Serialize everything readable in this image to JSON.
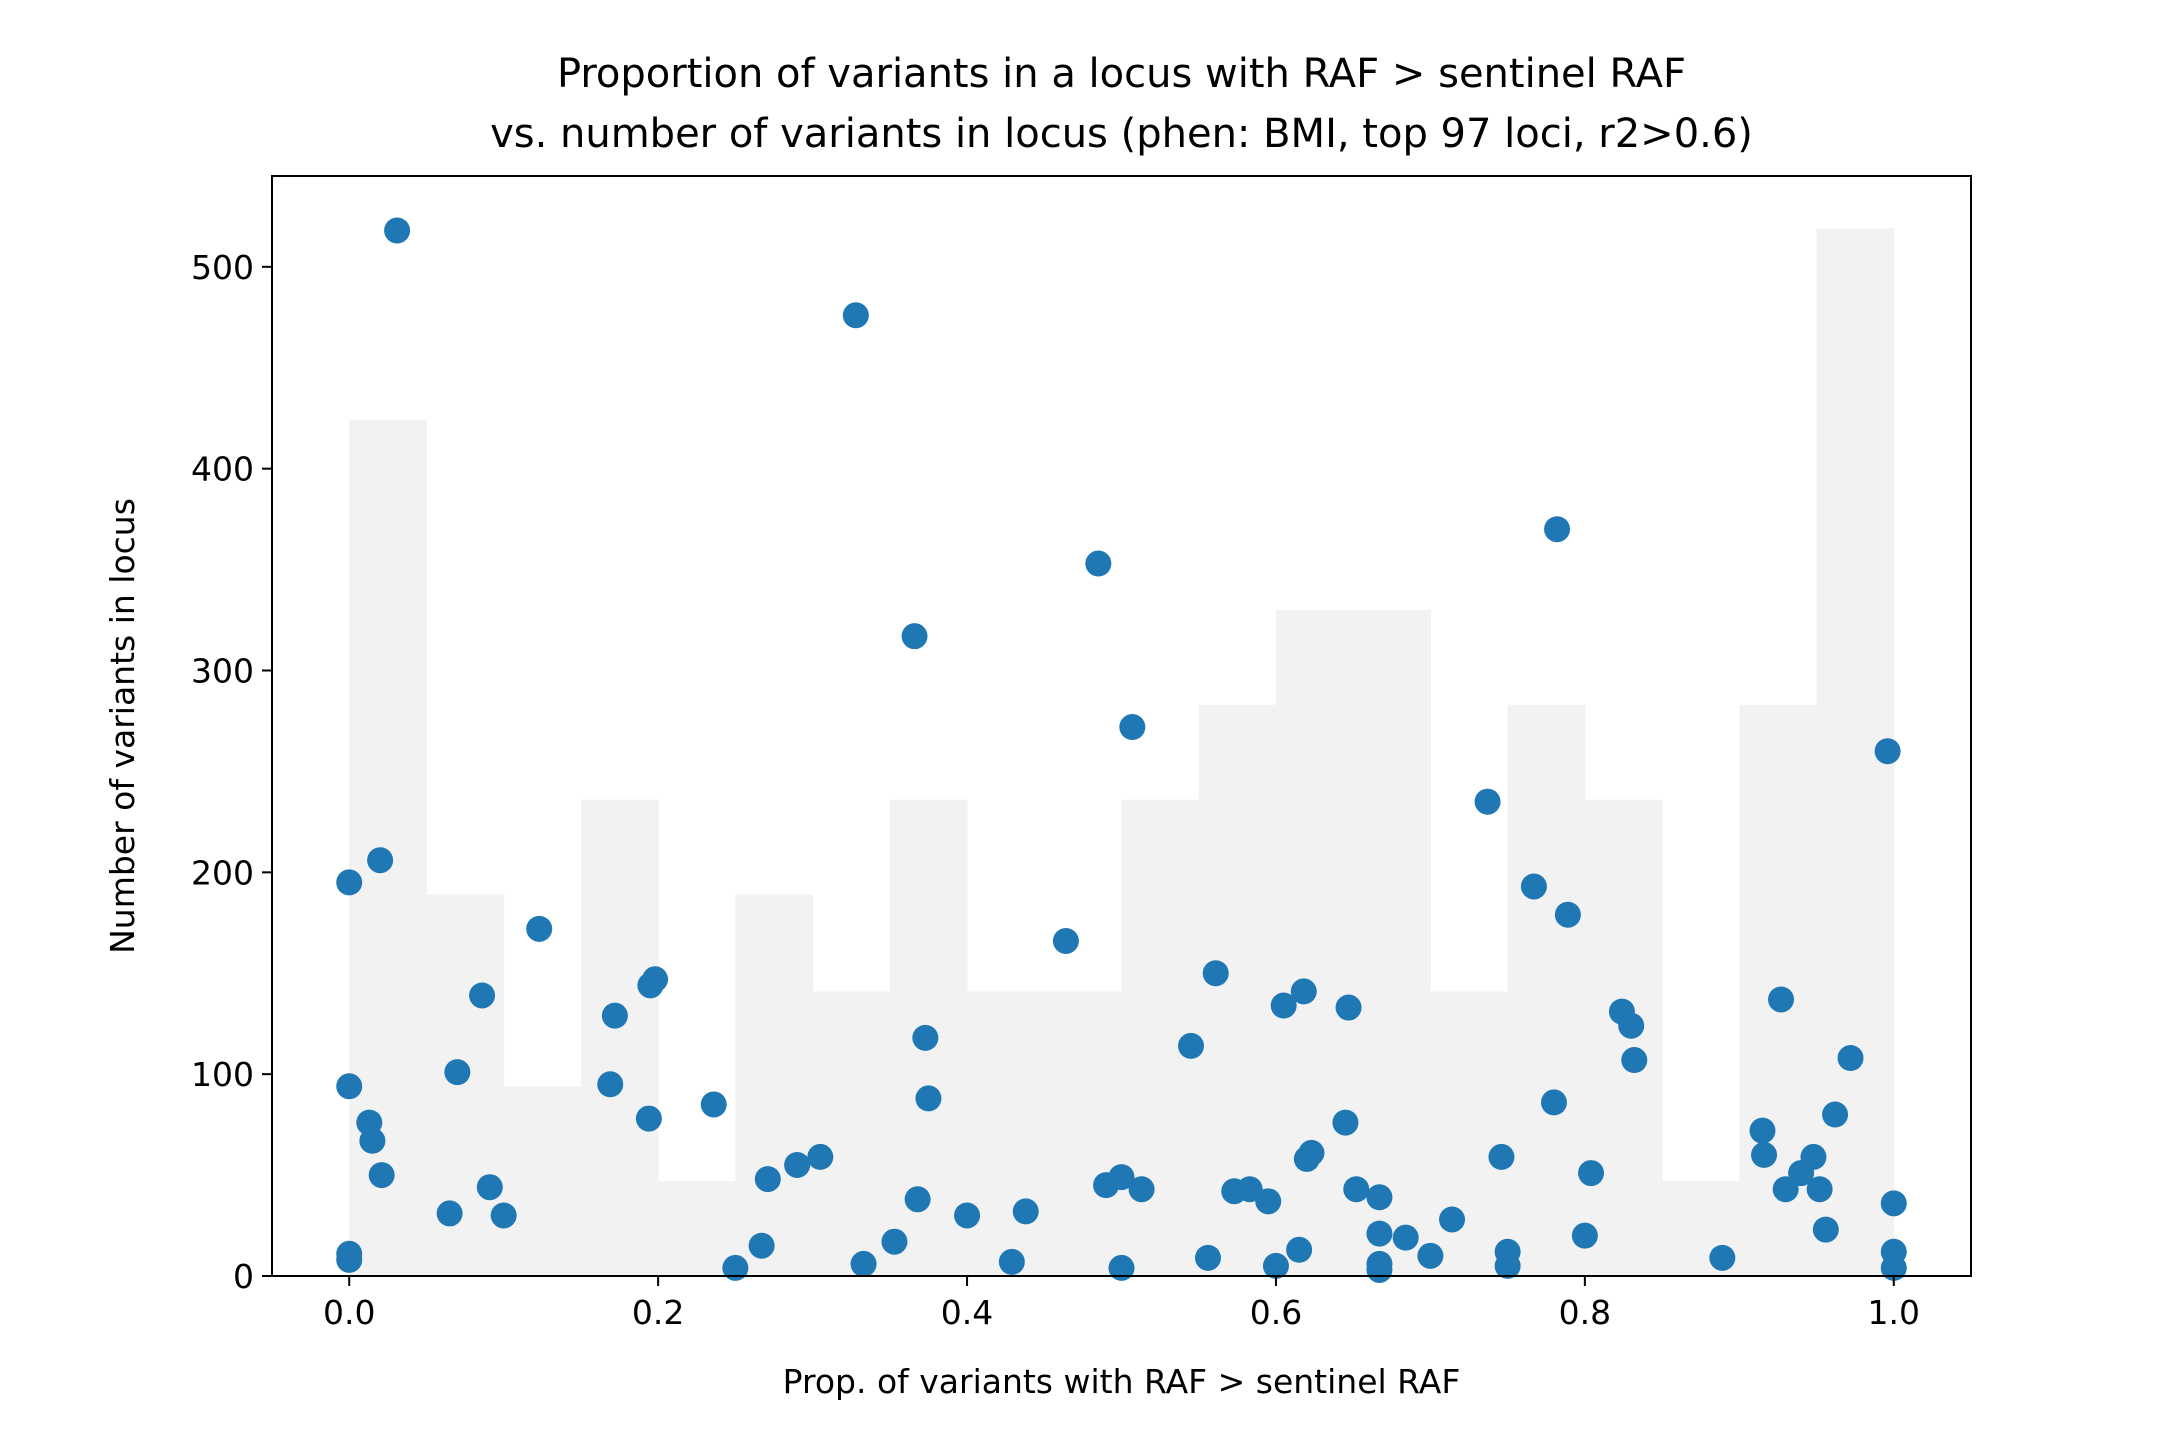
{
  "chart_data": {
    "type": "scatter",
    "title_lines": [
      "Proportion of variants in a locus with RAF > sentinel RAF",
      "vs. number of variants in locus (phen: BMI, top 97 loci, r2>0.6)"
    ],
    "xlabel": "Prop. of variants with RAF > sentinel RAF",
    "ylabel": "Number of variants in locus",
    "xlim": [
      -0.05,
      1.05
    ],
    "ylim": [
      0,
      545
    ],
    "x_ticks": [
      {
        "value": 0.0,
        "label": "0.0"
      },
      {
        "value": 0.2,
        "label": "0.2"
      },
      {
        "value": 0.4,
        "label": "0.4"
      },
      {
        "value": 0.6,
        "label": "0.6"
      },
      {
        "value": 0.8,
        "label": "0.8"
      },
      {
        "value": 1.0,
        "label": "1.0"
      }
    ],
    "y_ticks": [
      {
        "value": 0,
        "label": "0"
      },
      {
        "value": 100,
        "label": "100"
      },
      {
        "value": 200,
        "label": "200"
      },
      {
        "value": 300,
        "label": "300"
      },
      {
        "value": 400,
        "label": "400"
      },
      {
        "value": 500,
        "label": "500"
      }
    ],
    "grid": false,
    "colors": {
      "points": "#1f77b4",
      "histogram": "#f2f2f2",
      "axes": "#000000"
    },
    "background_histogram": {
      "bin_width": 0.05,
      "bin_starts": [
        0.0,
        0.05,
        0.1,
        0.15,
        0.2,
        0.25,
        0.3,
        0.35,
        0.4,
        0.45,
        0.5,
        0.55,
        0.6,
        0.65,
        0.7,
        0.75,
        0.8,
        0.85,
        0.9,
        0.95
      ],
      "heights": [
        424,
        189,
        94,
        236,
        47,
        189,
        141,
        236,
        141,
        141,
        236,
        283,
        330,
        330,
        141,
        283,
        236,
        47,
        283,
        519
      ]
    },
    "points": [
      {
        "x": 0.0,
        "y": 195
      },
      {
        "x": 0.0,
        "y": 94
      },
      {
        "x": 0.0,
        "y": 11
      },
      {
        "x": 0.0,
        "y": 8
      },
      {
        "x": 0.013,
        "y": 76
      },
      {
        "x": 0.015,
        "y": 67
      },
      {
        "x": 0.02,
        "y": 206
      },
      {
        "x": 0.021,
        "y": 50
      },
      {
        "x": 0.031,
        "y": 518
      },
      {
        "x": 0.065,
        "y": 31
      },
      {
        "x": 0.07,
        "y": 101
      },
      {
        "x": 0.086,
        "y": 139
      },
      {
        "x": 0.091,
        "y": 44
      },
      {
        "x": 0.1,
        "y": 30
      },
      {
        "x": 0.123,
        "y": 172
      },
      {
        "x": 0.169,
        "y": 95
      },
      {
        "x": 0.172,
        "y": 129
      },
      {
        "x": 0.194,
        "y": 78
      },
      {
        "x": 0.195,
        "y": 144
      },
      {
        "x": 0.198,
        "y": 147
      },
      {
        "x": 0.236,
        "y": 85
      },
      {
        "x": 0.25,
        "y": 4
      },
      {
        "x": 0.267,
        "y": 15
      },
      {
        "x": 0.271,
        "y": 48
      },
      {
        "x": 0.29,
        "y": 55
      },
      {
        "x": 0.305,
        "y": 59
      },
      {
        "x": 0.328,
        "y": 476
      },
      {
        "x": 0.333,
        "y": 6
      },
      {
        "x": 0.353,
        "y": 17
      },
      {
        "x": 0.366,
        "y": 317
      },
      {
        "x": 0.368,
        "y": 38
      },
      {
        "x": 0.373,
        "y": 118
      },
      {
        "x": 0.375,
        "y": 88
      },
      {
        "x": 0.4,
        "y": 30
      },
      {
        "x": 0.429,
        "y": 7
      },
      {
        "x": 0.438,
        "y": 32
      },
      {
        "x": 0.464,
        "y": 166
      },
      {
        "x": 0.485,
        "y": 353
      },
      {
        "x": 0.49,
        "y": 45
      },
      {
        "x": 0.5,
        "y": 49
      },
      {
        "x": 0.5,
        "y": 4
      },
      {
        "x": 0.507,
        "y": 272
      },
      {
        "x": 0.513,
        "y": 43
      },
      {
        "x": 0.545,
        "y": 114
      },
      {
        "x": 0.556,
        "y": 9
      },
      {
        "x": 0.561,
        "y": 150
      },
      {
        "x": 0.573,
        "y": 42
      },
      {
        "x": 0.583,
        "y": 43
      },
      {
        "x": 0.595,
        "y": 37
      },
      {
        "x": 0.6,
        "y": 5
      },
      {
        "x": 0.605,
        "y": 134
      },
      {
        "x": 0.615,
        "y": 13
      },
      {
        "x": 0.618,
        "y": 141
      },
      {
        "x": 0.62,
        "y": 58
      },
      {
        "x": 0.623,
        "y": 61
      },
      {
        "x": 0.645,
        "y": 76
      },
      {
        "x": 0.647,
        "y": 133
      },
      {
        "x": 0.652,
        "y": 43
      },
      {
        "x": 0.667,
        "y": 39
      },
      {
        "x": 0.667,
        "y": 21
      },
      {
        "x": 0.667,
        "y": 6
      },
      {
        "x": 0.667,
        "y": 3
      },
      {
        "x": 0.684,
        "y": 19
      },
      {
        "x": 0.7,
        "y": 10
      },
      {
        "x": 0.714,
        "y": 28
      },
      {
        "x": 0.737,
        "y": 235
      },
      {
        "x": 0.746,
        "y": 59
      },
      {
        "x": 0.75,
        "y": 12
      },
      {
        "x": 0.75,
        "y": 5
      },
      {
        "x": 0.767,
        "y": 193
      },
      {
        "x": 0.78,
        "y": 86
      },
      {
        "x": 0.782,
        "y": 370
      },
      {
        "x": 0.789,
        "y": 179
      },
      {
        "x": 0.8,
        "y": 20
      },
      {
        "x": 0.804,
        "y": 51
      },
      {
        "x": 0.824,
        "y": 131
      },
      {
        "x": 0.83,
        "y": 124
      },
      {
        "x": 0.832,
        "y": 107
      },
      {
        "x": 0.889,
        "y": 9
      },
      {
        "x": 0.915,
        "y": 72
      },
      {
        "x": 0.916,
        "y": 60
      },
      {
        "x": 0.927,
        "y": 137
      },
      {
        "x": 0.93,
        "y": 43
      },
      {
        "x": 0.94,
        "y": 51
      },
      {
        "x": 0.948,
        "y": 59
      },
      {
        "x": 0.952,
        "y": 43
      },
      {
        "x": 0.956,
        "y": 23
      },
      {
        "x": 0.962,
        "y": 80
      },
      {
        "x": 0.972,
        "y": 108
      },
      {
        "x": 0.996,
        "y": 260
      },
      {
        "x": 1.0,
        "y": 36
      },
      {
        "x": 1.0,
        "y": 12
      },
      {
        "x": 1.0,
        "y": 4
      }
    ]
  }
}
